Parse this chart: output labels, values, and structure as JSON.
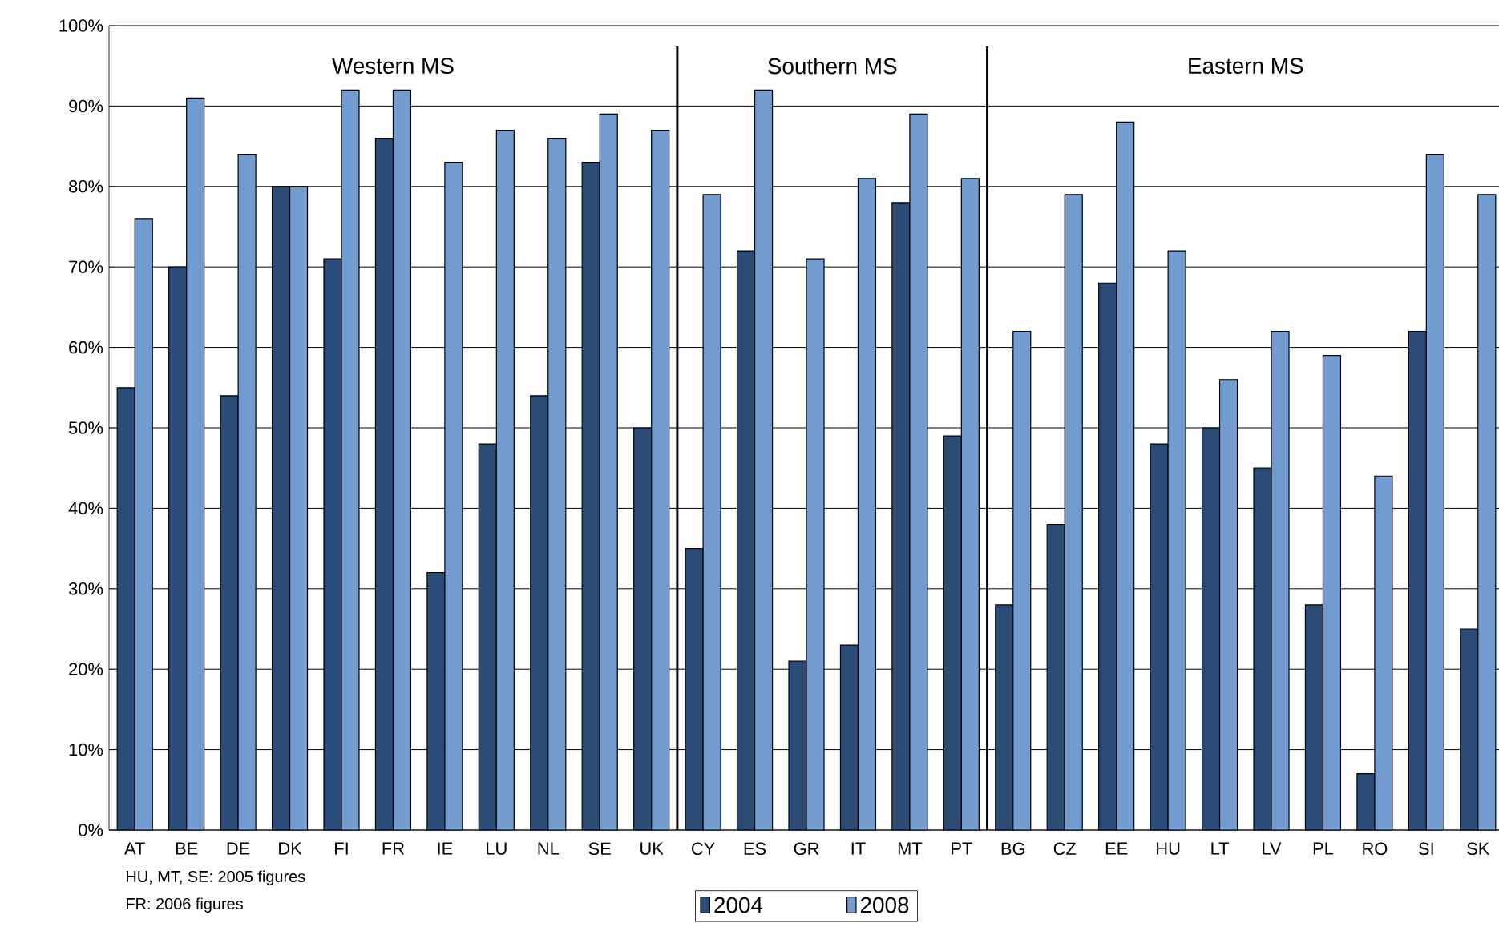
{
  "chart_data": {
    "type": "bar",
    "categories": [
      "AT",
      "BE",
      "DE",
      "DK",
      "FI",
      "FR",
      "IE",
      "LU",
      "NL",
      "SE",
      "UK",
      "CY",
      "ES",
      "GR",
      "IT",
      "MT",
      "PT",
      "BG",
      "CZ",
      "EE",
      "HU",
      "LT",
      "LV",
      "PL",
      "RO",
      "SI",
      "SK"
    ],
    "series": [
      {
        "name": "2004",
        "color": "#2b4c77",
        "values": [
          55,
          70,
          54,
          80,
          71,
          86,
          32,
          48,
          54,
          83,
          50,
          35,
          72,
          21,
          23,
          78,
          49,
          28,
          38,
          68,
          48,
          50,
          45,
          28,
          7,
          62,
          25
        ]
      },
      {
        "name": "2008",
        "color": "#729bcf",
        "values": [
          76,
          91,
          84,
          80,
          92,
          92,
          83,
          87,
          86,
          89,
          87,
          79,
          92,
          71,
          81,
          89,
          81,
          62,
          79,
          88,
          72,
          56,
          62,
          59,
          44,
          84,
          79
        ]
      }
    ],
    "ylim": [
      0,
      100
    ],
    "yticks": [
      {
        "value": 0,
        "label": "0%"
      },
      {
        "value": 10,
        "label": "10%"
      },
      {
        "value": 20,
        "label": "20%"
      },
      {
        "value": 30,
        "label": "30%"
      },
      {
        "value": 40,
        "label": "40%"
      },
      {
        "value": 50,
        "label": "50%"
      },
      {
        "value": 60,
        "label": "60%"
      },
      {
        "value": 70,
        "label": "70%"
      },
      {
        "value": 80,
        "label": "80%"
      },
      {
        "value": 90,
        "label": "90%"
      },
      {
        "value": 100,
        "label": "100%"
      }
    ],
    "grid": "y",
    "legend": "bottom",
    "annotations": [
      "Western MS",
      "Southern MS",
      "Eastern MS",
      "HU, MT, SE: 2005 figures",
      "FR: 2006 figures"
    ]
  }
}
